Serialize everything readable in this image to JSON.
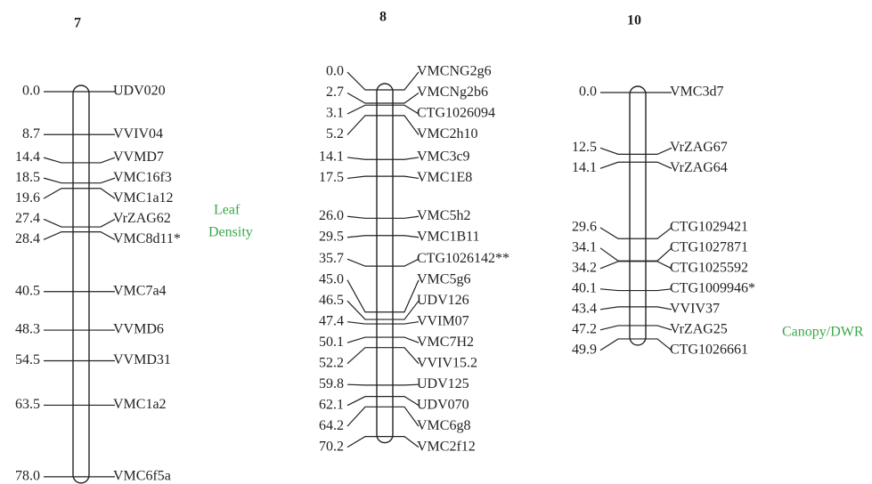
{
  "chromosomes": [
    {
      "name": "7",
      "qtl": [
        "Leaf",
        "Density"
      ],
      "markers": [
        {
          "position": "0.0",
          "name": "UDV020"
        },
        {
          "position": "8.7",
          "name": "VVIV04"
        },
        {
          "position": "14.4",
          "name": "VVMD7"
        },
        {
          "position": "18.5",
          "name": "VMC16f3"
        },
        {
          "position": "19.6",
          "name": "VMC1a12"
        },
        {
          "position": "27.4",
          "name": "VrZAG62"
        },
        {
          "position": "28.4",
          "name": "VMC8d11*"
        },
        {
          "position": "40.5",
          "name": "VMC7a4"
        },
        {
          "position": "48.3",
          "name": "VVMD6"
        },
        {
          "position": "54.5",
          "name": "VVMD31"
        },
        {
          "position": "63.5",
          "name": "VMC1a2"
        },
        {
          "position": "78.0",
          "name": "VMC6f5a"
        }
      ]
    },
    {
      "name": "8",
      "qtl": [],
      "markers": [
        {
          "position": "0.0",
          "name": "VMCNG2g6"
        },
        {
          "position": "2.7",
          "name": "VMCNg2b6"
        },
        {
          "position": "3.1",
          "name": "CTG1026094"
        },
        {
          "position": "5.2",
          "name": "VMC2h10"
        },
        {
          "position": "14.1",
          "name": "VMC3c9"
        },
        {
          "position": "17.5",
          "name": "VMC1E8"
        },
        {
          "position": "26.0",
          "name": "VMC5h2"
        },
        {
          "position": "29.5",
          "name": "VMC1B11"
        },
        {
          "position": "35.7",
          "name": "CTG1026142**"
        },
        {
          "position": "45.0",
          "name": "VMC5g6"
        },
        {
          "position": "46.5",
          "name": "UDV126"
        },
        {
          "position": "47.4",
          "name": "VVIM07"
        },
        {
          "position": "50.1",
          "name": "VMC7H2"
        },
        {
          "position": "52.2",
          "name": "VVIV15.2"
        },
        {
          "position": "59.8",
          "name": "UDV125"
        },
        {
          "position": "62.1",
          "name": "UDV070"
        },
        {
          "position": "64.2",
          "name": "VMC6g8"
        },
        {
          "position": "70.2",
          "name": "VMC2f12"
        }
      ]
    },
    {
      "name": "10",
      "qtl": [
        "Canopy/DWR"
      ],
      "markers": [
        {
          "position": "0.0",
          "name": "VMC3d7"
        },
        {
          "position": "12.5",
          "name": "VrZAG67"
        },
        {
          "position": "14.1",
          "name": "VrZAG64"
        },
        {
          "position": "29.6",
          "name": "CTG1029421"
        },
        {
          "position": "34.1",
          "name": "CTG1027871"
        },
        {
          "position": "34.2",
          "name": "CTG1025592"
        },
        {
          "position": "40.1",
          "name": "CTG1009946*"
        },
        {
          "position": "43.4",
          "name": "VVIV37"
        },
        {
          "position": "47.2",
          "name": "VrZAG25"
        },
        {
          "position": "49.9",
          "name": "CTG1026661"
        }
      ]
    }
  ]
}
